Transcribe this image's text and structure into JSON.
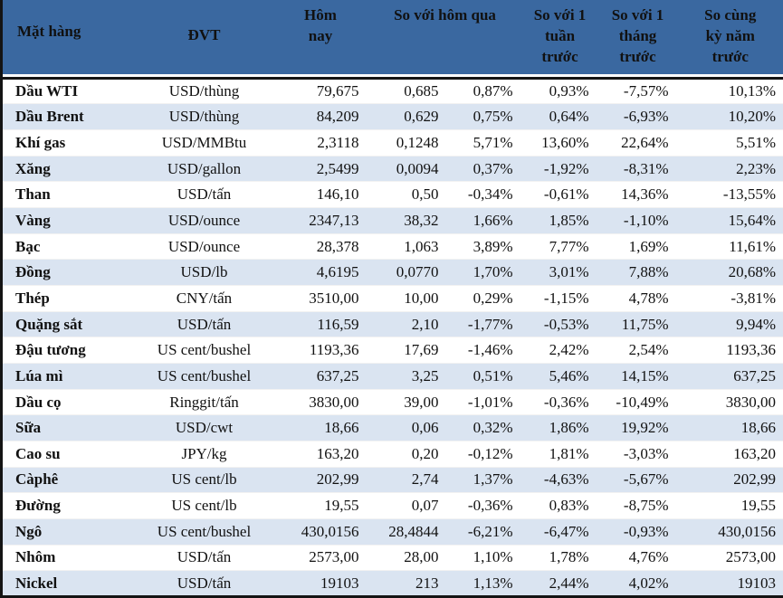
{
  "table": {
    "headers": {
      "commodity": "Mặt hàng",
      "unit": "ĐVT",
      "today": "Hôm nay",
      "vs_yesterday": "So với hôm qua",
      "vs_week": "So với 1 tuần trước",
      "vs_month": "So với 1 tháng trước",
      "vs_year": "So cùng kỳ năm trước"
    },
    "rows": [
      {
        "name": "Dầu WTI",
        "unit": "USD/thùng",
        "today": "79,675",
        "change": "0,685",
        "pct_day": "0,87%",
        "pct_week": "0,93%",
        "pct_month": "-7,57%",
        "pct_year": "10,13%"
      },
      {
        "name": "Dầu Brent",
        "unit": "USD/thùng",
        "today": "84,209",
        "change": "0,629",
        "pct_day": "0,75%",
        "pct_week": "0,64%",
        "pct_month": "-6,93%",
        "pct_year": "10,20%"
      },
      {
        "name": "Khí gas",
        "unit": "USD/MMBtu",
        "today": "2,3118",
        "change": "0,1248",
        "pct_day": "5,71%",
        "pct_week": "13,60%",
        "pct_month": "22,64%",
        "pct_year": "5,51%"
      },
      {
        "name": "Xăng",
        "unit": "USD/gallon",
        "today": "2,5499",
        "change": "0,0094",
        "pct_day": "0,37%",
        "pct_week": "-1,92%",
        "pct_month": "-8,31%",
        "pct_year": "2,23%"
      },
      {
        "name": "Than",
        "unit": "USD/tấn",
        "today": "146,10",
        "change": "0,50",
        "pct_day": "-0,34%",
        "pct_week": "-0,61%",
        "pct_month": "14,36%",
        "pct_year": "-13,55%"
      },
      {
        "name": "Vàng",
        "unit": "USD/ounce",
        "today": "2347,13",
        "change": "38,32",
        "pct_day": "1,66%",
        "pct_week": "1,85%",
        "pct_month": "-1,10%",
        "pct_year": "15,64%"
      },
      {
        "name": "Bạc",
        "unit": "USD/ounce",
        "today": "28,378",
        "change": "1,063",
        "pct_day": "3,89%",
        "pct_week": "7,77%",
        "pct_month": "1,69%",
        "pct_year": "11,61%"
      },
      {
        "name": "Đồng",
        "unit": "USD/lb",
        "today": "4,6195",
        "change": "0,0770",
        "pct_day": "1,70%",
        "pct_week": "3,01%",
        "pct_month": "7,88%",
        "pct_year": "20,68%"
      },
      {
        "name": "Thép",
        "unit": "CNY/tấn",
        "today": "3510,00",
        "change": "10,00",
        "pct_day": "0,29%",
        "pct_week": "-1,15%",
        "pct_month": "4,78%",
        "pct_year": "-3,81%"
      },
      {
        "name": "Quặng sắt",
        "unit": "USD/tấn",
        "today": "116,59",
        "change": "2,10",
        "pct_day": "-1,77%",
        "pct_week": "-0,53%",
        "pct_month": "11,75%",
        "pct_year": "9,94%"
      },
      {
        "name": "Đậu tương",
        "unit": "US cent/bushel",
        "today": "1193,36",
        "change": "17,69",
        "pct_day": "-1,46%",
        "pct_week": "2,42%",
        "pct_month": "2,54%",
        "pct_year": "1193,36"
      },
      {
        "name": "Lúa mì",
        "unit": "US cent/bushel",
        "today": "637,25",
        "change": "3,25",
        "pct_day": "0,51%",
        "pct_week": "5,46%",
        "pct_month": "14,15%",
        "pct_year": "637,25"
      },
      {
        "name": "Dầu cọ",
        "unit": "Ringgit/tấn",
        "today": "3830,00",
        "change": "39,00",
        "pct_day": "-1,01%",
        "pct_week": "-0,36%",
        "pct_month": "-10,49%",
        "pct_year": "3830,00"
      },
      {
        "name": "Sữa",
        "unit": "USD/cwt",
        "today": "18,66",
        "change": "0,06",
        "pct_day": "0,32%",
        "pct_week": "1,86%",
        "pct_month": "19,92%",
        "pct_year": "18,66"
      },
      {
        "name": "Cao su",
        "unit": "JPY/kg",
        "today": "163,20",
        "change": "0,20",
        "pct_day": "-0,12%",
        "pct_week": "1,81%",
        "pct_month": "-3,03%",
        "pct_year": "163,20"
      },
      {
        "name": "Càphê",
        "unit": "US cent/lb",
        "today": "202,99",
        "change": "2,74",
        "pct_day": "1,37%",
        "pct_week": "-4,63%",
        "pct_month": "-5,67%",
        "pct_year": "202,99"
      },
      {
        "name": "Đường",
        "unit": "US cent/lb",
        "today": "19,55",
        "change": "0,07",
        "pct_day": "-0,36%",
        "pct_week": "0,83%",
        "pct_month": "-8,75%",
        "pct_year": "19,55"
      },
      {
        "name": "Ngô",
        "unit": "US cent/bushel",
        "today": "430,0156",
        "change": "28,4844",
        "pct_day": "-6,21%",
        "pct_week": "-6,47%",
        "pct_month": "-0,93%",
        "pct_year": "430,0156"
      },
      {
        "name": "Nhôm",
        "unit": "USD/tấn",
        "today": "2573,00",
        "change": "28,00",
        "pct_day": "1,10%",
        "pct_week": "1,78%",
        "pct_month": "4,76%",
        "pct_year": "2573,00"
      },
      {
        "name": "Nickel",
        "unit": "USD/tấn",
        "today": "19103",
        "change": "213",
        "pct_day": "1,13%",
        "pct_week": "2,44%",
        "pct_month": "4,02%",
        "pct_year": "19103"
      }
    ]
  },
  "colors": {
    "header_bg": "#3A68A0",
    "row_alt_bg": "#DAE4F1",
    "border": "#141414",
    "text": "#111111"
  }
}
